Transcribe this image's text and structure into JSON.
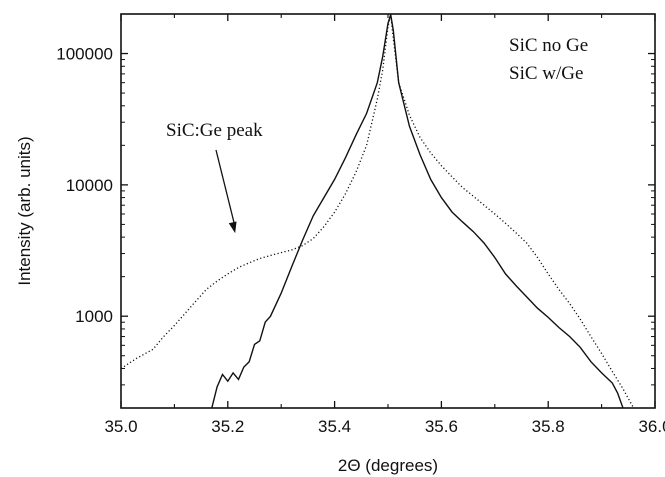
{
  "chart_data": {
    "type": "line",
    "xlabel": "2Θ (degrees)",
    "ylabel": "Intensity (arb. units)",
    "xlim": [
      35.0,
      36.0
    ],
    "ylim": [
      200,
      200000
    ],
    "y_scale": "log",
    "grid": false,
    "legend_placement": "top-right",
    "x_ticks": [
      35.0,
      35.2,
      35.4,
      35.6,
      35.8,
      36.0
    ],
    "x_tick_labels": [
      "35.0",
      "35.2",
      "35.4",
      "35.6",
      "35.8",
      "36.0"
    ],
    "y_ticks": [
      1000,
      10000,
      100000
    ],
    "y_tick_labels": [
      "1000",
      "10000",
      "100000"
    ],
    "legend": [
      "SiC no Ge",
      "SiC w/Ge"
    ],
    "annotation": {
      "text": "SiC:Ge peak",
      "points_to": [
        35.21,
        4000
      ]
    },
    "series": [
      {
        "name": "SiC no Ge",
        "style": "solid",
        "x": [
          35.17,
          35.18,
          35.19,
          35.2,
          35.21,
          35.22,
          35.23,
          35.24,
          35.25,
          35.26,
          35.27,
          35.28,
          35.3,
          35.32,
          35.34,
          35.36,
          35.38,
          35.4,
          35.42,
          35.44,
          35.46,
          35.48,
          35.49,
          35.5,
          35.505,
          35.51,
          35.52,
          35.54,
          35.56,
          35.58,
          35.6,
          35.62,
          35.64,
          35.66,
          35.68,
          35.7,
          35.72,
          35.74,
          35.76,
          35.78,
          35.8,
          35.82,
          35.84,
          35.86,
          35.88,
          35.9,
          35.92,
          35.93,
          35.94
        ],
        "values": [
          200,
          290,
          360,
          320,
          370,
          330,
          410,
          450,
          610,
          650,
          900,
          1000,
          1500,
          2400,
          3800,
          5800,
          8000,
          11000,
          16000,
          24000,
          35000,
          60000,
          95000,
          170000,
          198000,
          150000,
          60000,
          28000,
          17000,
          11000,
          8000,
          6200,
          5200,
          4400,
          3600,
          2800,
          2100,
          1700,
          1400,
          1150,
          980,
          820,
          700,
          580,
          450,
          370,
          310,
          260,
          200
        ]
      },
      {
        "name": "SiC w/Ge",
        "style": "dotted",
        "x": [
          35.0,
          35.03,
          35.06,
          35.08,
          35.1,
          35.12,
          35.14,
          35.16,
          35.18,
          35.2,
          35.22,
          35.24,
          35.26,
          35.28,
          35.3,
          35.32,
          35.34,
          35.36,
          35.38,
          35.4,
          35.42,
          35.44,
          35.46,
          35.48,
          35.49,
          35.5,
          35.505,
          35.51,
          35.52,
          35.54,
          35.56,
          35.58,
          35.6,
          35.62,
          35.64,
          35.66,
          35.68,
          35.7,
          35.72,
          35.74,
          35.76,
          35.78,
          35.8,
          35.82,
          35.84,
          35.86,
          35.88,
          35.9,
          35.92,
          35.94,
          35.96
        ],
        "values": [
          400,
          480,
          560,
          700,
          850,
          1050,
          1300,
          1600,
          1850,
          2100,
          2350,
          2550,
          2750,
          2900,
          3050,
          3200,
          3450,
          3900,
          4800,
          6200,
          8500,
          12500,
          20000,
          45000,
          75000,
          160000,
          198000,
          130000,
          60000,
          34000,
          23000,
          17500,
          14000,
          11500,
          9500,
          8200,
          7000,
          6000,
          5100,
          4300,
          3600,
          2800,
          2100,
          1600,
          1250,
          950,
          700,
          520,
          380,
          280,
          200
        ]
      }
    ]
  }
}
